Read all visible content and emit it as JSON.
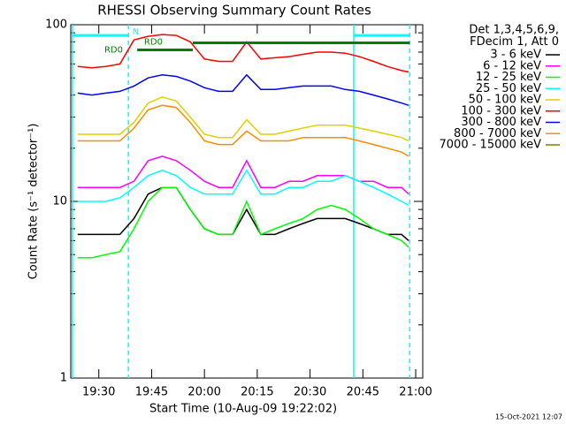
{
  "chart_data": {
    "type": "line",
    "title": "RHESSI Observing Summary Count Rates",
    "xlabel": "Start Time (10-Aug-09 19:22:02)",
    "ylabel": "Count Rate (s⁻¹ detector⁻¹)",
    "footer": "15-Oct-2021 12:07",
    "legend_header": [
      "Det 1,3,4,5,6,9,",
      "FDecim 1, Att 0"
    ],
    "legend": "right",
    "log_y": true,
    "xlim": [
      1162.03,
      1262
    ],
    "ylim": [
      1,
      100
    ],
    "xticks": [
      {
        "value": 1170,
        "label": "19:30"
      },
      {
        "value": 1185,
        "label": "19:45"
      },
      {
        "value": 1200,
        "label": "20:00"
      },
      {
        "value": 1215,
        "label": "20:15"
      },
      {
        "value": 1230,
        "label": "20:30"
      },
      {
        "value": 1245,
        "label": "20:45"
      },
      {
        "value": 1260,
        "label": "21:00"
      }
    ],
    "yticks": [
      1,
      10,
      100
    ],
    "x": [
      1164,
      1168,
      1172,
      1176,
      1180,
      1184,
      1188,
      1192,
      1196,
      1200,
      1204,
      1208,
      1212,
      1216,
      1220,
      1224,
      1228,
      1232,
      1236,
      1240,
      1244,
      1248,
      1252,
      1256,
      1258
    ],
    "series": [
      {
        "name": "3 - 6 keV",
        "color": "#000000",
        "values": [
          6.5,
          6.5,
          6.5,
          6.5,
          8,
          11,
          12,
          12,
          9,
          7,
          6.5,
          6.5,
          9,
          6.5,
          6.5,
          7,
          7.5,
          8,
          8,
          8,
          7.5,
          7,
          6.5,
          6.5,
          6
        ]
      },
      {
        "name": "6 - 12 keV",
        "color": "#ff00ff",
        "values": [
          12,
          12,
          12,
          12,
          13,
          17,
          18,
          17,
          15,
          13,
          12,
          12,
          17,
          12,
          12,
          13,
          13,
          14,
          14,
          14,
          13,
          13,
          12,
          12,
          11
        ]
      },
      {
        "name": "12 - 25 keV",
        "color": "#00ff00",
        "values": [
          4.8,
          4.8,
          5,
          5.2,
          7,
          10,
          12,
          12,
          9,
          7,
          6.5,
          6.5,
          10,
          6.5,
          7,
          7.5,
          8,
          9,
          9.5,
          9,
          8,
          7,
          6.5,
          6,
          5.5
        ]
      },
      {
        "name": "25 - 50 keV",
        "color": "#00ffff",
        "values": [
          10,
          10,
          10,
          10.5,
          12,
          14,
          15,
          14,
          12,
          11,
          11,
          11,
          15,
          11,
          11,
          12,
          12,
          13,
          13,
          14,
          13,
          12,
          11,
          10,
          9.5
        ]
      },
      {
        "name": "50 - 100 keV",
        "color": "#e0d000",
        "values": [
          24,
          24,
          24,
          24,
          28,
          36,
          39,
          37,
          30,
          24,
          23,
          23,
          29,
          24,
          24,
          25,
          26,
          27,
          27,
          27,
          26,
          25,
          24,
          23,
          22
        ]
      },
      {
        "name": "100 - 300 keV",
        "color": "#ff0000",
        "values": [
          58,
          57,
          58,
          60,
          82,
          86,
          88,
          87,
          80,
          64,
          62,
          62,
          80,
          64,
          65,
          66,
          68,
          70,
          70,
          69,
          66,
          62,
          58,
          55,
          54
        ]
      },
      {
        "name": "300 - 800 keV",
        "color": "#0000ff",
        "values": [
          41,
          40,
          41,
          42,
          45,
          50,
          52,
          51,
          48,
          44,
          42,
          42,
          52,
          43,
          43,
          44,
          45,
          45,
          45,
          43,
          42,
          40,
          38,
          36,
          35
        ]
      },
      {
        "name": "800 - 7000 keV",
        "color": "#ff8c00",
        "values": [
          22,
          22,
          22,
          22,
          26,
          33,
          35,
          34,
          28,
          22,
          21,
          21,
          25,
          22,
          22,
          22,
          23,
          23,
          23,
          23,
          22,
          21,
          20,
          19,
          18
        ]
      },
      {
        "name": "7000 - 15000 keV",
        "color": "#808000",
        "values": [
          null,
          null,
          null,
          null,
          null,
          null,
          null,
          null,
          null,
          null,
          null,
          null,
          null,
          null,
          null,
          null,
          null,
          null,
          null,
          null,
          null,
          null,
          null,
          null,
          null
        ]
      }
    ],
    "bars": [
      {
        "start": 1162.5,
        "end": 1178.4,
        "level": 87,
        "color": "#00ffff"
      },
      {
        "start": 1242.4,
        "end": 1258.3,
        "level": 87,
        "color": "#00ffff"
      },
      {
        "start": 1180.9,
        "end": 1196.7,
        "level": 72,
        "color": "#008000"
      },
      {
        "start": 1196.7,
        "end": 1258.3,
        "level": 79,
        "color": "#008000"
      }
    ],
    "vlines": [
      {
        "x": 1162.5,
        "color": "#00ffff",
        "dashed": false
      },
      {
        "x": 1178.4,
        "color": "#00ffff",
        "dashed": true
      },
      {
        "x": 1242.4,
        "color": "#00ffff",
        "dashed": false
      },
      {
        "x": 1258.3,
        "color": "#00ffff",
        "dashed": true
      }
    ],
    "annotations": [
      {
        "text": "N",
        "x": 1180.5,
        "y": 91,
        "color": "#00ffff"
      },
      {
        "text": "RD0",
        "x": 1174.2,
        "y": 72,
        "color": "#008000"
      },
      {
        "text": "RD0",
        "x": 1185.5,
        "y": 80,
        "color": "#008000"
      }
    ]
  }
}
